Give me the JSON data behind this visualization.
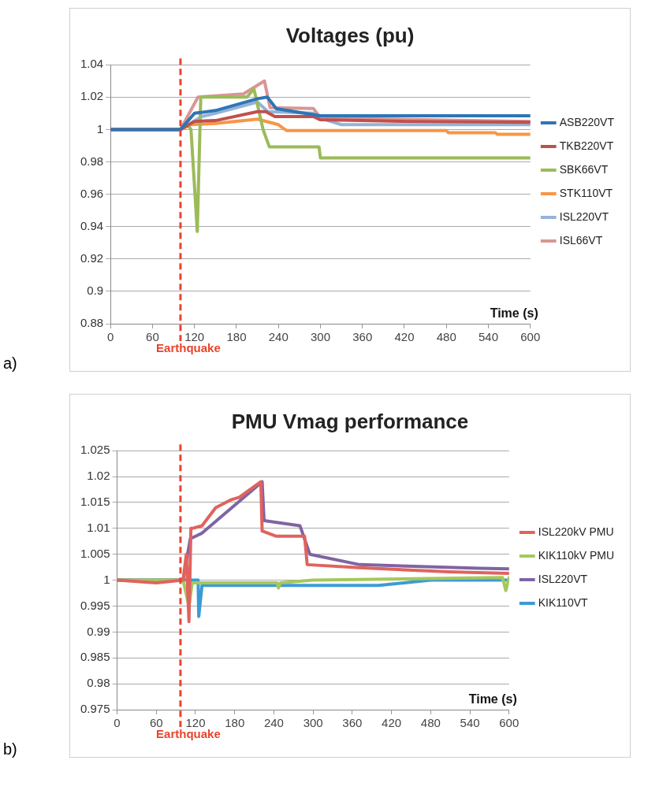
{
  "chart_data": [
    {
      "type": "line",
      "title": "Voltages (pu)",
      "xlabel": "Time (s)",
      "xlim": [
        0,
        600
      ],
      "xticks": [
        0,
        60,
        120,
        180,
        240,
        300,
        360,
        420,
        480,
        540,
        600
      ],
      "ylim": [
        0.88,
        1.04
      ],
      "yticks": [
        0.88,
        0.9,
        0.92,
        0.94,
        0.96,
        0.98,
        1,
        1.02,
        1.04
      ],
      "grid": "y",
      "legend": "right",
      "marker": "none",
      "line_style": "solid",
      "ref_lines": [
        {
          "axis": "x",
          "value": 100,
          "label": "Earthquake",
          "color": "#e8452c",
          "line_style": "dashed"
        }
      ],
      "annotations": [
        "a)"
      ],
      "series": [
        {
          "name": "ASB220VT",
          "color": "#2e75b6",
          "x": [
            0,
            100,
            120,
            150,
            210,
            224,
            237,
            300,
            420,
            600
          ],
          "values": [
            1,
            1,
            1.01,
            1.0117,
            1.019,
            1.02,
            1.0128,
            1.0085,
            1.0085,
            1.0085
          ]
        },
        {
          "name": "TKB220VT",
          "color": "#c0504d",
          "x": [
            0,
            100,
            120,
            150,
            210,
            222,
            235,
            290,
            300,
            420,
            600
          ],
          "values": [
            1,
            1,
            1.005,
            1.0055,
            1.011,
            1.011,
            1.008,
            1.008,
            1.006,
            1.005,
            1.0045
          ]
        },
        {
          "name": "SBK66VT",
          "color": "#9bbb59",
          "x": [
            0,
            100,
            110,
            115,
            124,
            129,
            195,
            205,
            218,
            227,
            298,
            300,
            600
          ],
          "values": [
            1,
            1,
            1.003,
            1.0,
            0.937,
            1.02,
            1.02,
            1.025,
            1.0,
            0.9893,
            0.9893,
            0.9824,
            0.9824
          ]
        },
        {
          "name": "STK110VT",
          "color": "#f79646",
          "x": [
            0,
            100,
            115,
            150,
            210,
            240,
            246,
            252,
            480,
            483,
            550,
            553,
            600
          ],
          "values": [
            1,
            1,
            1.003,
            1.0037,
            1.0064,
            1.003,
            1.001,
            0.9993,
            0.9993,
            0.998,
            0.998,
            0.997,
            0.997
          ]
        },
        {
          "name": "ISL220VT",
          "color": "#95b3d7",
          "x": [
            0,
            100,
            130,
            150,
            210,
            225,
            290,
            300,
            330,
            600
          ],
          "values": [
            1,
            1,
            1.008,
            1.01,
            1.017,
            1.011,
            1.01,
            1.007,
            1.003,
            1.003
          ]
        },
        {
          "name": "ISL66VT",
          "color": "#d99694",
          "x": [
            0,
            100,
            125,
            190,
            220,
            228,
            290,
            300,
            600
          ],
          "values": [
            1,
            1,
            1.02,
            1.022,
            1.03,
            1.0135,
            1.013,
            1.007,
            1.005
          ]
        }
      ]
    },
    {
      "type": "line",
      "title": "PMU Vmag performance",
      "xlabel": "Time (s)",
      "xlim": [
        0,
        600
      ],
      "xticks": [
        0,
        60,
        120,
        180,
        240,
        300,
        360,
        420,
        480,
        540,
        600
      ],
      "ylim": [
        0.975,
        1.025
      ],
      "yticks": [
        0.975,
        0.98,
        0.985,
        0.99,
        0.995,
        1,
        1.005,
        1.01,
        1.015,
        1.02,
        1.025
      ],
      "grid": "y",
      "legend": "right",
      "marker": "none",
      "line_style": "solid",
      "ref_lines": [
        {
          "axis": "x",
          "value": 97,
          "label": "Earthquake",
          "color": "#e8452c",
          "line_style": "dashed"
        }
      ],
      "annotations": [
        "b)"
      ],
      "series": [
        {
          "name": "ISL220kV PMU",
          "color": "#e0635e",
          "x": [
            0,
            60,
            101,
            106,
            110,
            113,
            115,
            130,
            151,
            174,
            187,
            220,
            222,
            243,
            260,
            287,
            291,
            371,
            508,
            600
          ],
          "values": [
            1,
            0.9995,
            1,
            1.005,
            0.992,
            1.01,
            1.01,
            1.0105,
            1.014,
            1.0155,
            1.016,
            1.019,
            1.0095,
            1.0085,
            1.0085,
            1.0085,
            1.003,
            1.0024,
            1.0016,
            1.0013
          ]
        },
        {
          "name": "KIK110kV PMU",
          "color": "#a5c85a",
          "x": [
            0,
            101,
            110,
            115,
            245,
            247,
            250,
            300,
            590,
            595,
            600
          ],
          "values": [
            1,
            1,
            0.995,
            0.9995,
            0.9995,
            0.9985,
            0.9995,
            1,
            1.0005,
            0.998,
            1.0005
          ]
        },
        {
          "name": "ISL220VT",
          "color": "#8064a2",
          "x": [
            0,
            101,
            112,
            129,
            222,
            225,
            280,
            295,
            371,
            555,
            600
          ],
          "values": [
            1,
            1,
            1.008,
            1.009,
            1.019,
            1.0115,
            1.0105,
            1.005,
            1.003,
            1.0023,
            1.0022
          ]
        },
        {
          "name": "KIK110VT",
          "color": "#3c9bd6",
          "x": [
            0,
            101,
            124,
            125,
            130,
            400,
            480,
            600
          ],
          "values": [
            1,
            1,
            1,
            0.993,
            0.999,
            0.999,
            1,
            1
          ]
        }
      ]
    }
  ]
}
